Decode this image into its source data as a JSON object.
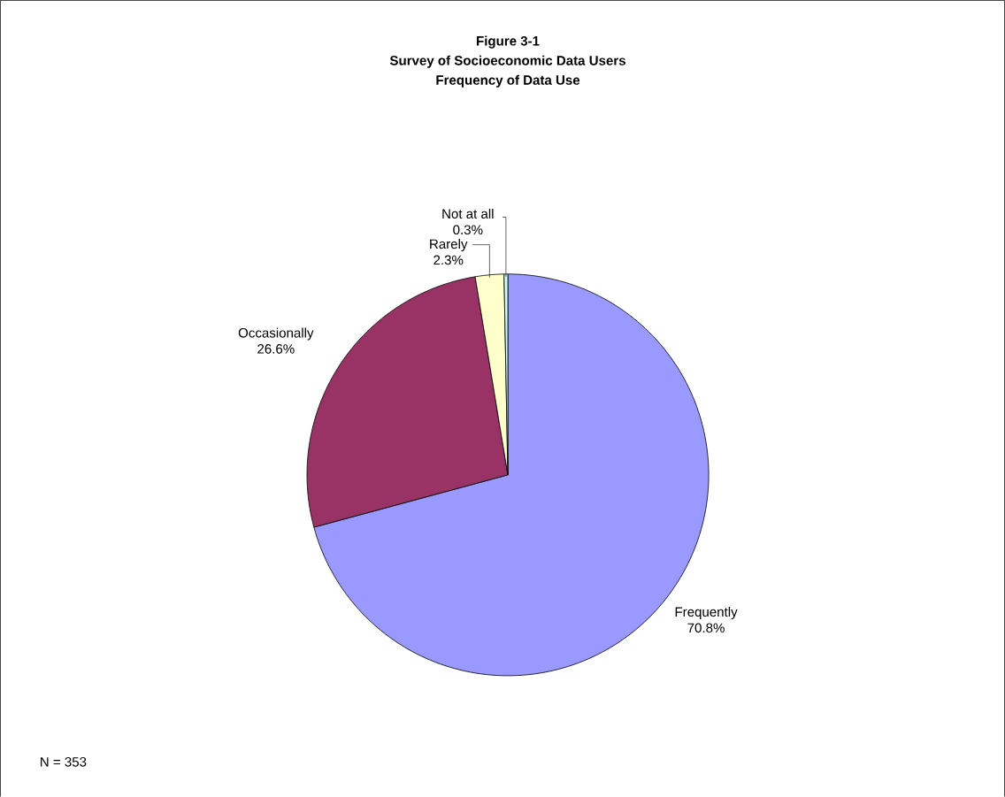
{
  "chart_data": {
    "type": "pie",
    "title": "Figure 3-1",
    "subtitle": "Survey of Socioeconomic Data Users",
    "annotations": [
      "Frequency of Data Use",
      "N = 353"
    ],
    "categories": [
      "Frequently",
      "Occasionally",
      "Rarely",
      "Not at all"
    ],
    "values": [
      70.8,
      26.6,
      2.3,
      0.3
    ],
    "value_labels": [
      "70.8%",
      "26.6%",
      "2.3%",
      "0.3%"
    ],
    "colors": [
      "#9999ff",
      "#993366",
      "#ffffcc",
      "#ccffff"
    ]
  }
}
